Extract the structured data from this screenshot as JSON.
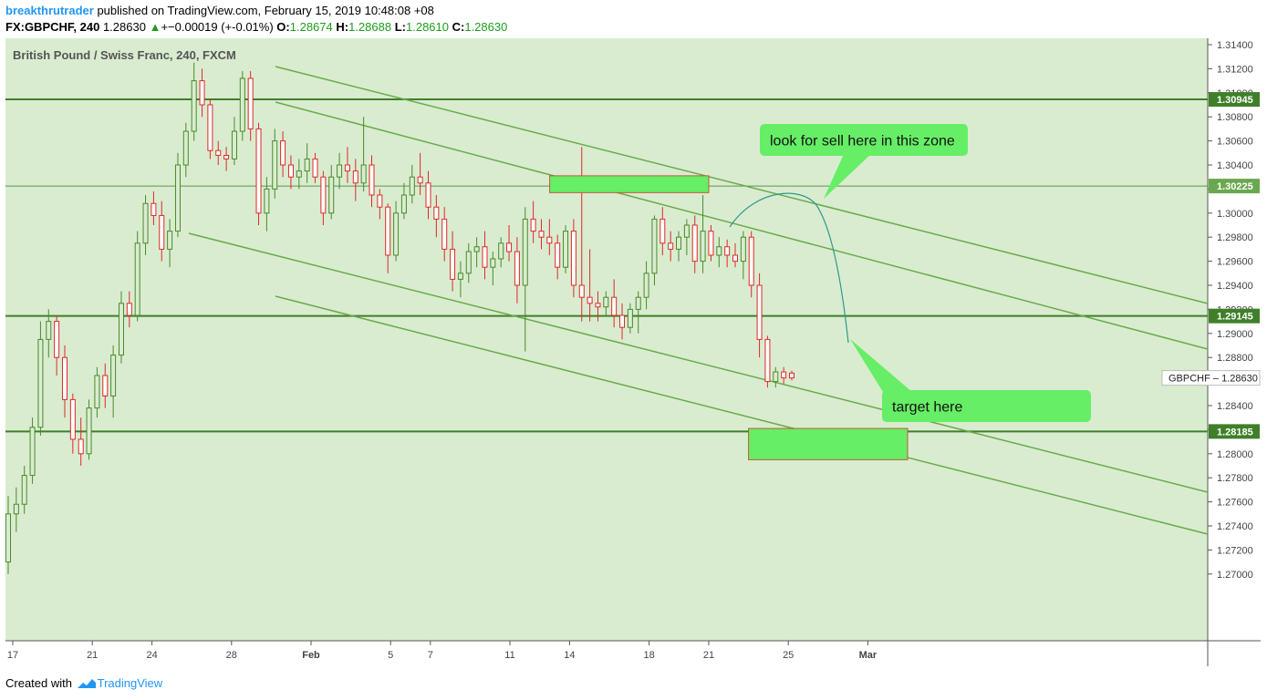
{
  "header": {
    "author": "breakthrutrader",
    "published": "published on TradingView.com, February 15, 2019 10:48:08 +08",
    "symbol": "FX:GBPCHF, 240",
    "last": "1.28630",
    "change_arrow": "▲",
    "change": "+−0.00019 (+-0.01%)",
    "o_label": "O:",
    "o": "1.28674",
    "h_label": "H:",
    "h": "1.28688",
    "l_label": "L:",
    "l": "1.28610",
    "c_label": "C:",
    "c": "1.28630"
  },
  "footer": {
    "created": "Created with",
    "brand": "TradingView",
    "logo_icon": "tradingview-cloud-icon"
  },
  "colors": {
    "background": "#d9ecd0",
    "up": "#4a8a2a",
    "down": "#e02828",
    "channel": "#6aaa4a",
    "level": "#3f7f2a",
    "zone": "#66ee66",
    "path": "#2f9a8a"
  },
  "chart_data": {
    "type": "candlestick",
    "title": "British Pound / Swiss Franc, 240, FXCM",
    "x_ticks": [
      "17",
      "21",
      "24",
      "28",
      "Feb",
      "5",
      "7",
      "11",
      "14",
      "18",
      "21",
      "25",
      "Mar"
    ],
    "y_ticks": [
      "1.27000",
      "1.27200",
      "1.27400",
      "1.27600",
      "1.27800",
      "1.28000",
      "1.28200",
      "1.28400",
      "1.28600",
      "1.28800",
      "1.29000",
      "1.29200",
      "1.29400",
      "1.29600",
      "1.29800",
      "1.30000",
      "1.30200",
      "1.30400",
      "1.30600",
      "1.30800",
      "1.31000",
      "1.31200",
      "1.31400"
    ],
    "ylim": [
      1.2685,
      1.3147
    ],
    "levels": [
      {
        "label": "1.30945",
        "value": 1.30945
      },
      {
        "label": "1.30225",
        "value": 1.30225
      },
      {
        "label": "1.29145",
        "value": 1.29145
      },
      {
        "label": "1.28185",
        "value": 1.28185
      }
    ],
    "last_price": {
      "symbol": "GBPCHF",
      "value": "1.28630"
    },
    "annotations": [
      {
        "text": "look for sell here in this zone"
      },
      {
        "text": "target here"
      }
    ],
    "zones": [
      {
        "name": "sell-zone",
        "from_date": "Feb 13",
        "to_date": "Feb 21",
        "low": 1.3017,
        "high": 1.3031
      },
      {
        "name": "target-zone",
        "from_date": "Feb 23",
        "to_date": "Mar 2",
        "low": 1.2795,
        "high": 1.2821
      }
    ],
    "ohlc": [
      [
        1.271,
        1.2765,
        1.27,
        1.275
      ],
      [
        1.275,
        1.2772,
        1.2735,
        1.2758
      ],
      [
        1.2758,
        1.279,
        1.275,
        1.2782
      ],
      [
        1.2782,
        1.283,
        1.2775,
        1.2822
      ],
      [
        1.2822,
        1.291,
        1.2815,
        1.2895
      ],
      [
        1.2895,
        1.292,
        1.288,
        1.291
      ],
      [
        1.291,
        1.2915,
        1.2865,
        1.288
      ],
      [
        1.288,
        1.289,
        1.283,
        1.2845
      ],
      [
        1.2845,
        1.285,
        1.28,
        1.2812
      ],
      [
        1.2812,
        1.283,
        1.279,
        1.28
      ],
      [
        1.28,
        1.2845,
        1.2795,
        1.2838
      ],
      [
        1.2838,
        1.2872,
        1.283,
        1.2865
      ],
      [
        1.2865,
        1.2875,
        1.2838,
        1.2848
      ],
      [
        1.2848,
        1.289,
        1.283,
        1.2882
      ],
      [
        1.2882,
        1.2935,
        1.2875,
        1.2925
      ],
      [
        1.2925,
        1.2935,
        1.2905,
        1.2915
      ],
      [
        1.2915,
        1.2985,
        1.291,
        1.2975
      ],
      [
        1.2975,
        1.3015,
        1.2965,
        1.3008
      ],
      [
        1.3008,
        1.3018,
        1.299,
        1.2998
      ],
      [
        1.2998,
        1.301,
        1.296,
        1.297
      ],
      [
        1.297,
        1.2995,
        1.2955,
        1.2985
      ],
      [
        1.2985,
        1.305,
        1.298,
        1.304
      ],
      [
        1.304,
        1.3075,
        1.303,
        1.3068
      ],
      [
        1.3068,
        1.3125,
        1.306,
        1.311
      ],
      [
        1.311,
        1.312,
        1.308,
        1.309
      ],
      [
        1.309,
        1.3095,
        1.3045,
        1.3052
      ],
      [
        1.3052,
        1.306,
        1.304,
        1.3048
      ],
      [
        1.3048,
        1.3055,
        1.3035,
        1.3045
      ],
      [
        1.3045,
        1.308,
        1.304,
        1.3068
      ],
      [
        1.3068,
        1.3118,
        1.306,
        1.3112
      ],
      [
        1.3112,
        1.3118,
        1.306,
        1.307
      ],
      [
        1.307,
        1.3075,
        1.299,
        1.3
      ],
      [
        1.3,
        1.303,
        1.2985,
        1.302
      ],
      [
        1.302,
        1.307,
        1.3012,
        1.306
      ],
      [
        1.306,
        1.3068,
        1.303,
        1.304
      ],
      [
        1.304,
        1.3048,
        1.302,
        1.303
      ],
      [
        1.303,
        1.3045,
        1.302,
        1.3035
      ],
      [
        1.3035,
        1.3058,
        1.3025,
        1.3045
      ],
      [
        1.3045,
        1.305,
        1.3025,
        1.303
      ],
      [
        1.303,
        1.3035,
        1.299,
        1.3
      ],
      [
        1.3,
        1.304,
        1.2995,
        1.303
      ],
      [
        1.303,
        1.305,
        1.302,
        1.304
      ],
      [
        1.304,
        1.3055,
        1.3025,
        1.3035
      ],
      [
        1.3035,
        1.3045,
        1.301,
        1.3025
      ],
      [
        1.3025,
        1.308,
        1.3018,
        1.304
      ],
      [
        1.304,
        1.3048,
        1.3005,
        1.3015
      ],
      [
        1.3015,
        1.302,
        1.2995,
        1.3005
      ],
      [
        1.3005,
        1.3008,
        1.295,
        1.2965
      ],
      [
        1.2965,
        1.301,
        1.296,
        1.3
      ],
      [
        1.3,
        1.3025,
        1.2995,
        1.3015
      ],
      [
        1.3015,
        1.304,
        1.3008,
        1.303
      ],
      [
        1.303,
        1.305,
        1.3015,
        1.3025
      ],
      [
        1.3025,
        1.3035,
        1.2995,
        1.3005
      ],
      [
        1.3005,
        1.3015,
        1.298,
        1.2995
      ],
      [
        1.2995,
        1.3005,
        1.296,
        1.297
      ],
      [
        1.297,
        1.2985,
        1.2935,
        1.2945
      ],
      [
        1.2945,
        1.296,
        1.293,
        1.295
      ],
      [
        1.295,
        1.2975,
        1.2942,
        1.2968
      ],
      [
        1.2968,
        1.298,
        1.2955,
        1.2972
      ],
      [
        1.2972,
        1.2985,
        1.2945,
        1.2955
      ],
      [
        1.2955,
        1.2968,
        1.294,
        1.2962
      ],
      [
        1.2962,
        1.298,
        1.2955,
        1.2975
      ],
      [
        1.2975,
        1.299,
        1.296,
        1.2968
      ],
      [
        1.2968,
        1.298,
        1.2925,
        1.294
      ],
      [
        1.294,
        1.3005,
        1.2885,
        1.2995
      ],
      [
        1.2995,
        1.301,
        1.2975,
        1.2985
      ],
      [
        1.2985,
        1.2995,
        1.297,
        1.298
      ],
      [
        1.298,
        1.2995,
        1.2965,
        1.2975
      ],
      [
        1.2975,
        1.2982,
        1.2945,
        1.2955
      ],
      [
        1.2955,
        1.299,
        1.295,
        1.2985
      ],
      [
        1.2985,
        1.2995,
        1.293,
        1.294
      ],
      [
        1.294,
        1.3055,
        1.291,
        1.293
      ],
      [
        1.293,
        1.297,
        1.291,
        1.2925
      ],
      [
        1.2925,
        1.2935,
        1.291,
        1.2922
      ],
      [
        1.2922,
        1.2935,
        1.2915,
        1.293
      ],
      [
        1.293,
        1.2945,
        1.2905,
        1.2915
      ],
      [
        1.2915,
        1.2925,
        1.2895,
        1.2905
      ],
      [
        1.2905,
        1.2925,
        1.29,
        1.292
      ],
      [
        1.292,
        1.2935,
        1.29,
        1.293
      ],
      [
        1.293,
        1.296,
        1.292,
        1.295
      ],
      [
        1.295,
        1.2998,
        1.294,
        1.2995
      ],
      [
        1.2995,
        1.3005,
        1.2965,
        1.2975
      ],
      [
        1.2975,
        1.2985,
        1.296,
        1.297
      ],
      [
        1.297,
        1.2985,
        1.296,
        1.298
      ],
      [
        1.298,
        1.2995,
        1.2965,
        1.299
      ],
      [
        1.299,
        1.2998,
        1.295,
        1.296
      ],
      [
        1.296,
        1.3015,
        1.295,
        1.2985
      ],
      [
        1.2985,
        1.299,
        1.296,
        1.2965
      ],
      [
        1.2965,
        1.298,
        1.2955,
        1.2972
      ],
      [
        1.2972,
        1.2978,
        1.2955,
        1.2965
      ],
      [
        1.2965,
        1.2975,
        1.2955,
        1.296
      ],
      [
        1.296,
        1.2985,
        1.2945,
        1.298
      ],
      [
        1.298,
        1.2985,
        1.293,
        1.294
      ],
      [
        1.294,
        1.295,
        1.288,
        1.2895
      ],
      [
        1.2895,
        1.2898,
        1.2855,
        1.286
      ],
      [
        1.286,
        1.2872,
        1.2855,
        1.2868
      ],
      [
        1.2868,
        1.2872,
        1.2858,
        1.2863
      ],
      [
        1.2867,
        1.2869,
        1.2861,
        1.2863
      ]
    ]
  }
}
